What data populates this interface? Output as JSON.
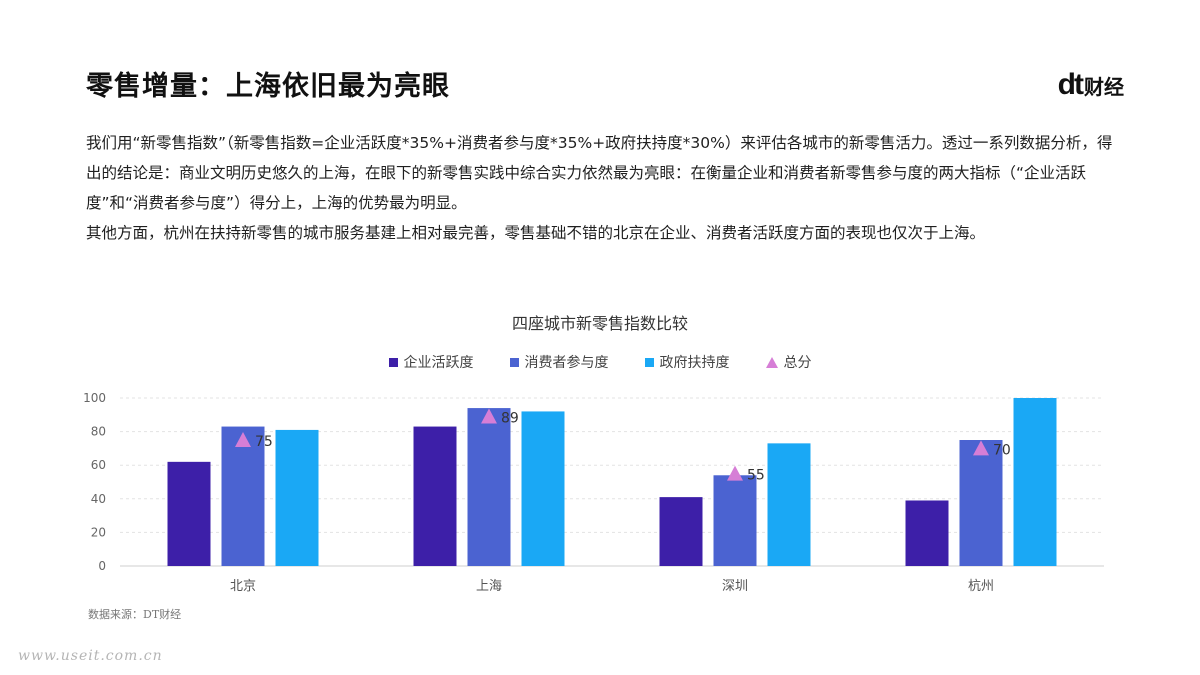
{
  "header": {
    "title": "零售增量：上海依旧最为亮眼",
    "logo_mark": "dt",
    "logo_text": "财经"
  },
  "body": {
    "paragraph1": "我们用“新零售指数”（新零售指数=企业活跃度*35%+消费者参与度*35%+政府扶持度*30%）来评估各城市的新零售活力。透过一系列数据分析，得出的结论是：商业文明历史悠久的上海，在眼下的新零售实践中综合实力依然最为亮眼：在衡量企业和消费者新零售参与度的两大指标（“企业活跃度”和“消费者参与度”）得分上，上海的优势最为明显。",
    "paragraph2": "其他方面，杭州在扶持新零售的城市服务基建上相对最完善，零售基础不错的北京在企业、消费者活跃度方面的表现也仅次于上海。"
  },
  "footer": {
    "source": "数据来源：DT财经",
    "watermark": "www.useit.com.cn"
  },
  "chart_data": {
    "type": "bar",
    "title": "四座城市新零售指数比较",
    "categories": [
      "北京",
      "上海",
      "深圳",
      "杭州"
    ],
    "series": [
      {
        "name": "企业活跃度",
        "values": [
          62,
          83,
          41,
          39
        ],
        "color": "#3d1fa8"
      },
      {
        "name": "消费者参与度",
        "values": [
          83,
          94,
          54,
          75
        ],
        "color": "#4b63d1"
      },
      {
        "name": "政府扶持度",
        "values": [
          81,
          92,
          73,
          100
        ],
        "color": "#1aa8f5"
      }
    ],
    "markers": {
      "name": "总分",
      "values": [
        75,
        89,
        55,
        70
      ],
      "labels": [
        "75",
        "89",
        "55",
        "70"
      ],
      "color": "#d67ed6"
    },
    "ylim": [
      0,
      100
    ],
    "yticks": [
      "0",
      "20",
      "40",
      "60",
      "80",
      "100"
    ],
    "grid": true,
    "legend": "top-center"
  }
}
